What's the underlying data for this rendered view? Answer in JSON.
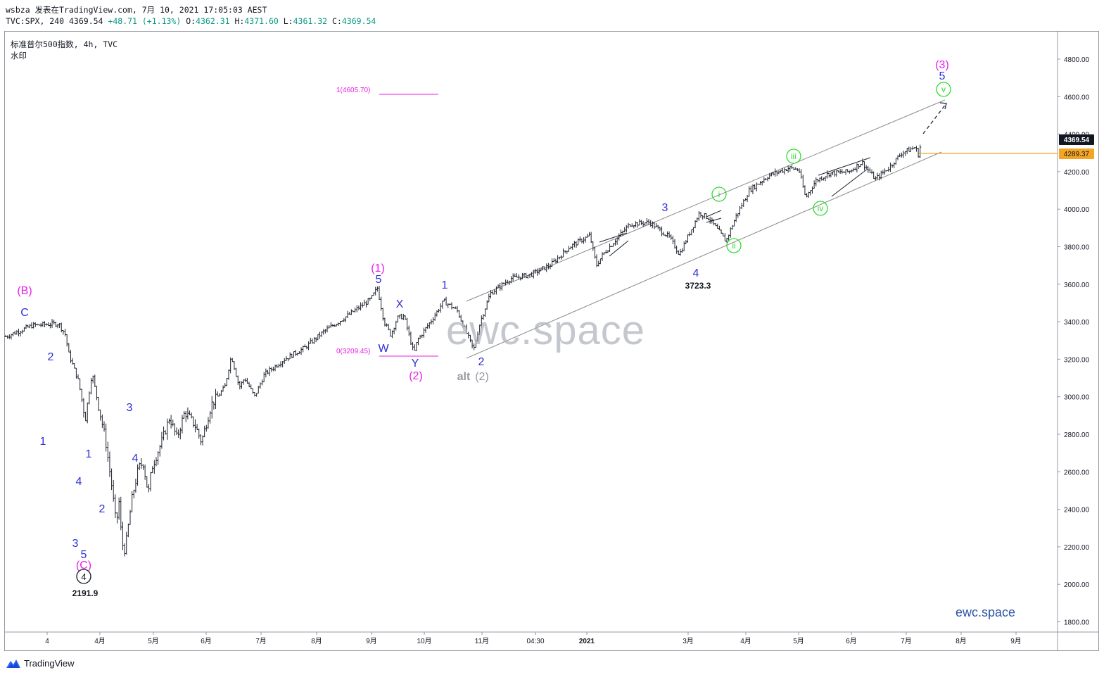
{
  "header": {
    "line1": "wsbza 发表在TradingView.com, 7月 10, 2021 17:05:03 AEST",
    "symbol_prefix": "TVC:SPX, 240 4369.54",
    "change": "+48.71 (+1.13%)",
    "o_label": "O:",
    "o_value": "4362.31",
    "h_label": "H:",
    "h_value": "4371.60",
    "l_label": "L:",
    "l_value": "4361.32",
    "c_label": "C:",
    "c_value": "4369.54"
  },
  "legend": {
    "title": "标准普尔500指数, 4h, TVC",
    "watermark_label": "水印"
  },
  "watermark": "ewc.space",
  "brand_corner": "ewc.space",
  "footer": {
    "logo_text": "TradingView"
  },
  "colors": {
    "candle": "#1e222d",
    "wave_blue": "#2d2ed6",
    "wave_magenta": "#e91ee6",
    "wave_green": "#2bdc2b",
    "gray_label": "#9598a1",
    "price_tag": "#131722",
    "orange": "#f5a524",
    "channel": "#8a8a8a"
  },
  "chart_data": {
    "type": "ohlc",
    "ylim": [
      1760,
      4880
    ],
    "price_ticks": [
      "4800.00",
      "4600.00",
      "4400.00",
      "4200.00",
      "4000.00",
      "3800.00",
      "3600.00",
      "3400.00",
      "3200.00",
      "3000.00",
      "2800.00",
      "2600.00",
      "2400.00",
      "2200.00",
      "2000.00",
      "1800.00"
    ],
    "time_ticks": [
      "4",
      "4月",
      "5月",
      "6月",
      "7月",
      "8月",
      "9月",
      "10月",
      "11月",
      "04:30",
      "2021",
      "3月",
      "4月",
      "5月",
      "6月",
      "7月",
      "8月",
      "9月"
    ],
    "current_price": "4369.54",
    "horizontal_level": "4289.37",
    "fib_levels": [
      {
        "label": "1(4605.70)",
        "value": 4605.7
      },
      {
        "label": "0(3209.45)",
        "value": 3209.45
      }
    ],
    "path": [
      [
        0,
        3320
      ],
      [
        4,
        3380
      ],
      [
        8,
        3390
      ],
      [
        9,
        3330
      ],
      [
        9.5,
        3230
      ],
      [
        11,
        3080
      ],
      [
        12,
        2880
      ],
      [
        13,
        3130
      ],
      [
        14,
        2950
      ],
      [
        15,
        2780
      ],
      [
        16,
        2520
      ],
      [
        16.7,
        2300
      ],
      [
        17,
        2480
      ],
      [
        17.5,
        2220
      ],
      [
        18,
        2180
      ],
      [
        19,
        2450
      ],
      [
        20,
        2620
      ],
      [
        20.7,
        2650
      ],
      [
        21.5,
        2480
      ],
      [
        22,
        2620
      ],
      [
        23.5,
        2760
      ],
      [
        24.7,
        2890
      ],
      [
        25.8,
        2780
      ],
      [
        27,
        2920
      ],
      [
        28.5,
        2850
      ],
      [
        29.5,
        2760
      ],
      [
        31,
        2960
      ],
      [
        33,
        3050
      ],
      [
        34,
        3220
      ],
      [
        35.2,
        3050
      ],
      [
        36,
        3100
      ],
      [
        37.5,
        3000
      ],
      [
        39,
        3120
      ],
      [
        42,
        3200
      ],
      [
        45,
        3260
      ],
      [
        48,
        3350
      ],
      [
        51,
        3420
      ],
      [
        55,
        3520
      ],
      [
        56,
        3580
      ],
      [
        57,
        3400
      ],
      [
        58,
        3330
      ],
      [
        59,
        3420
      ],
      [
        60,
        3430
      ],
      [
        61.5,
        3230
      ],
      [
        62,
        3300
      ],
      [
        64,
        3400
      ],
      [
        66,
        3510
      ],
      [
        68,
        3460
      ],
      [
        70.5,
        3250
      ],
      [
        71.5,
        3400
      ],
      [
        73,
        3550
      ],
      [
        76,
        3630
      ],
      [
        79,
        3650
      ],
      [
        82,
        3700
      ],
      [
        85,
        3800
      ],
      [
        88,
        3860
      ],
      [
        89,
        3700
      ],
      [
        90,
        3760
      ],
      [
        94,
        3920
      ],
      [
        97,
        3930
      ],
      [
        100,
        3850
      ],
      [
        101.5,
        3760
      ],
      [
        103,
        3870
      ],
      [
        104.5,
        3980
      ],
      [
        106,
        3950
      ],
      [
        108.5,
        3830
      ],
      [
        110,
        3960
      ],
      [
        112,
        4100
      ],
      [
        115,
        4180
      ],
      [
        118,
        4220
      ],
      [
        119.5,
        4210
      ],
      [
        120.5,
        4060
      ],
      [
        122,
        4150
      ],
      [
        124,
        4190
      ],
      [
        127,
        4200
      ],
      [
        129,
        4250
      ],
      [
        131,
        4160
      ],
      [
        133,
        4220
      ],
      [
        135,
        4300
      ],
      [
        137,
        4330
      ],
      [
        137.5,
        4289
      ],
      [
        138,
        4370
      ]
    ],
    "wave_labels": [
      {
        "text": "(B)",
        "color": "magenta"
      },
      {
        "text": "C",
        "color": "blue"
      },
      {
        "text": "2",
        "color": "blue"
      },
      {
        "text": "1",
        "color": "blue"
      },
      {
        "text": "1",
        "color": "blue"
      },
      {
        "text": "4",
        "color": "blue"
      },
      {
        "text": "3",
        "color": "blue"
      },
      {
        "text": "5",
        "color": "blue"
      },
      {
        "text": "(C)",
        "color": "magenta"
      },
      {
        "text": "2191.9",
        "color": "black"
      },
      {
        "text": "2",
        "color": "blue"
      },
      {
        "text": "3",
        "color": "blue"
      },
      {
        "text": "4",
        "color": "blue"
      },
      {
        "text": "(1)",
        "color": "magenta"
      },
      {
        "text": "5",
        "color": "blue"
      },
      {
        "text": "W",
        "color": "blue"
      },
      {
        "text": "X",
        "color": "blue"
      },
      {
        "text": "Y",
        "color": "blue"
      },
      {
        "text": "(2)",
        "color": "magenta"
      },
      {
        "text": "1",
        "color": "blue"
      },
      {
        "text": "2",
        "color": "blue"
      },
      {
        "text": "alt",
        "color": "gray"
      },
      {
        "text": "(2)",
        "color": "gray"
      },
      {
        "text": "3",
        "color": "blue"
      },
      {
        "text": "4",
        "color": "blue"
      },
      {
        "text": "3723.3",
        "color": "black"
      },
      {
        "text": "(3)",
        "color": "magenta"
      },
      {
        "text": "5",
        "color": "blue"
      }
    ],
    "circle_labels": [
      "4",
      "i",
      "ii",
      "iii",
      "iv",
      "v"
    ]
  }
}
